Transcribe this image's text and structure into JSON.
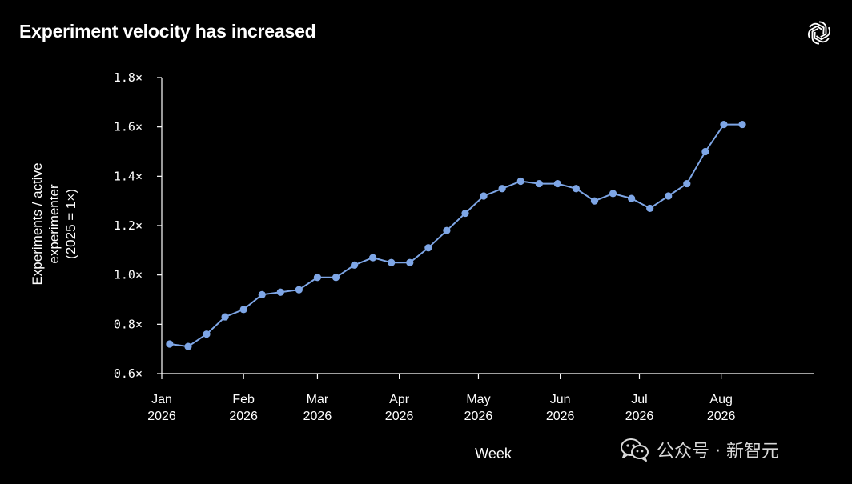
{
  "title": "Experiment velocity has increased",
  "watermark_text": "公众号 · 新智元",
  "icons": {
    "brand": "openai-logo-icon",
    "watermark": "wechat-icon"
  },
  "colors": {
    "background": "#000000",
    "line": "#7ea6e6",
    "text": "#ffffff"
  },
  "chart_data": {
    "type": "line",
    "title": "Experiment velocity has increased",
    "xlabel": "Week",
    "ylabel": [
      "Experiments / active",
      "experimenter",
      "(2025 = 1×)"
    ],
    "ylim": [
      0.6,
      1.8
    ],
    "yticks": [
      {
        "value": 0.6,
        "label": "0.6×"
      },
      {
        "value": 0.8,
        "label": "0.8×"
      },
      {
        "value": 1.0,
        "label": "1.0×"
      },
      {
        "value": 1.2,
        "label": "1.2×"
      },
      {
        "value": 1.4,
        "label": "1.4×"
      },
      {
        "value": 1.6,
        "label": "1.6×"
      },
      {
        "value": 1.8,
        "label": "1.8×"
      }
    ],
    "xlim": [
      "2026-01-01",
      "2026-09-05"
    ],
    "xticks": [
      {
        "date": "2026-01-01",
        "label": [
          "Jan",
          "2026"
        ]
      },
      {
        "date": "2026-02-01",
        "label": [
          "Feb",
          "2026"
        ]
      },
      {
        "date": "2026-03-01",
        "label": [
          "Mar",
          "2026"
        ]
      },
      {
        "date": "2026-04-01",
        "label": [
          "Apr",
          "2026"
        ]
      },
      {
        "date": "2026-05-01",
        "label": [
          "May",
          "2026"
        ]
      },
      {
        "date": "2026-06-01",
        "label": [
          "Jun",
          "2026"
        ]
      },
      {
        "date": "2026-07-01",
        "label": [
          "Jul",
          "2026"
        ]
      },
      {
        "date": "2026-08-01",
        "label": [
          "Aug",
          "2026"
        ]
      }
    ],
    "grid": false,
    "legend": "none",
    "series": [
      {
        "points": [
          {
            "x": "2026-01-04",
            "y": 0.72
          },
          {
            "x": "2026-01-11",
            "y": 0.71
          },
          {
            "x": "2026-01-18",
            "y": 0.76
          },
          {
            "x": "2026-01-25",
            "y": 0.83
          },
          {
            "x": "2026-02-01",
            "y": 0.86
          },
          {
            "x": "2026-02-08",
            "y": 0.92
          },
          {
            "x": "2026-02-15",
            "y": 0.93
          },
          {
            "x": "2026-02-22",
            "y": 0.94
          },
          {
            "x": "2026-03-01",
            "y": 0.99
          },
          {
            "x": "2026-03-08",
            "y": 0.99
          },
          {
            "x": "2026-03-15",
            "y": 1.04
          },
          {
            "x": "2026-03-22",
            "y": 1.07
          },
          {
            "x": "2026-03-29",
            "y": 1.05
          },
          {
            "x": "2026-04-05",
            "y": 1.05
          },
          {
            "x": "2026-04-12",
            "y": 1.11
          },
          {
            "x": "2026-04-19",
            "y": 1.18
          },
          {
            "x": "2026-04-26",
            "y": 1.25
          },
          {
            "x": "2026-05-03",
            "y": 1.32
          },
          {
            "x": "2026-05-10",
            "y": 1.35
          },
          {
            "x": "2026-05-17",
            "y": 1.38
          },
          {
            "x": "2026-05-24",
            "y": 1.37
          },
          {
            "x": "2026-05-31",
            "y": 1.37
          },
          {
            "x": "2026-06-07",
            "y": 1.35
          },
          {
            "x": "2026-06-14",
            "y": 1.3
          },
          {
            "x": "2026-06-21",
            "y": 1.33
          },
          {
            "x": "2026-06-28",
            "y": 1.31
          },
          {
            "x": "2026-07-05",
            "y": 1.27
          },
          {
            "x": "2026-07-12",
            "y": 1.32
          },
          {
            "x": "2026-07-19",
            "y": 1.37
          },
          {
            "x": "2026-07-26",
            "y": 1.5
          },
          {
            "x": "2026-08-02",
            "y": 1.61
          },
          {
            "x": "2026-08-09",
            "y": 1.61
          }
        ]
      }
    ]
  }
}
